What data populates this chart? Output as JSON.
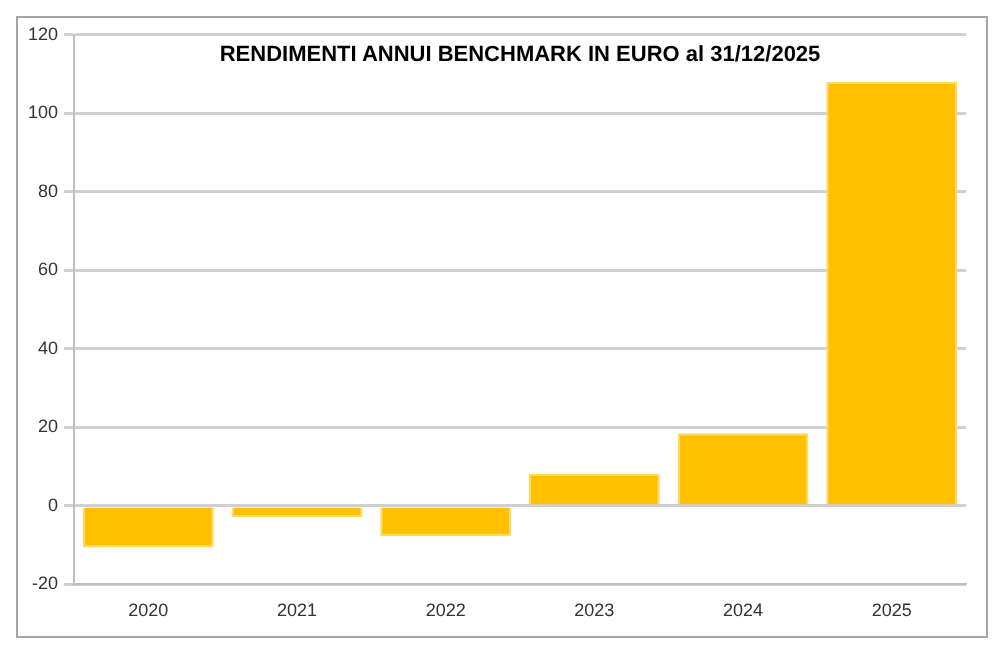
{
  "chart_data": {
    "type": "bar",
    "title": "RENDIMENTI ANNUI BENCHMARK IN EURO al 31/12/2025",
    "categories": [
      "2020",
      "2021",
      "2022",
      "2023",
      "2024",
      "2025"
    ],
    "values": [
      -10.6,
      -2.8,
      -7.7,
      8.2,
      18.5,
      108
    ],
    "color": "#ffc000",
    "ylim": [
      -20,
      120
    ],
    "yticks": [
      -20,
      0,
      20,
      40,
      60,
      80,
      100,
      120
    ],
    "grid": "y",
    "legend": false
  }
}
